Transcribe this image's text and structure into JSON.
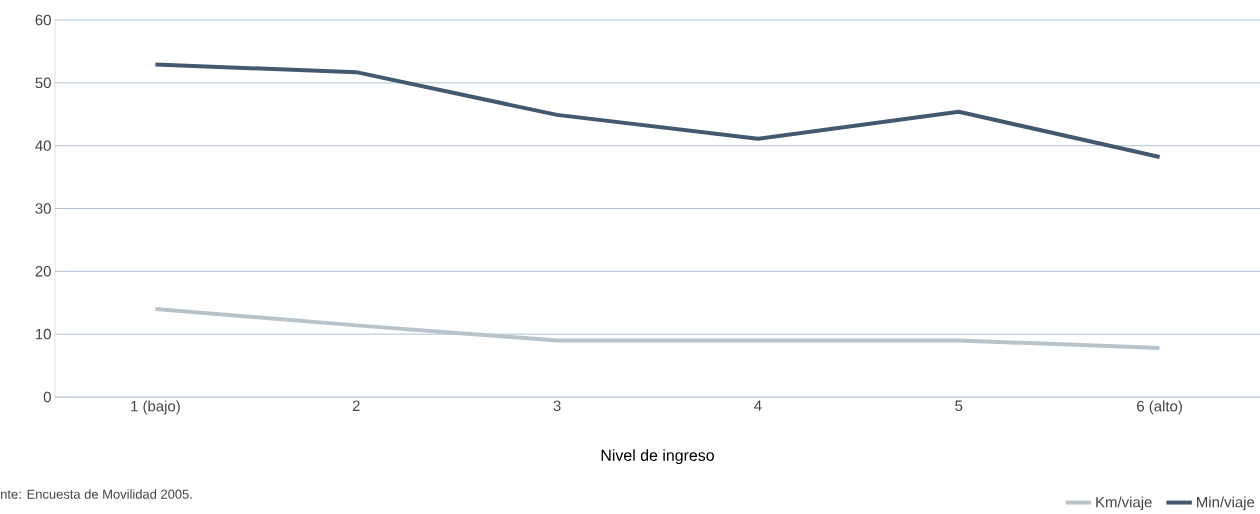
{
  "chart_data": {
    "type": "line",
    "xlabel": "Nivel de ingreso",
    "categories": [
      "1 (bajo)",
      "2",
      "3",
      "4",
      "5",
      "6 (alto)"
    ],
    "series": [
      {
        "name": "Km/viaje",
        "color": "#b8c3cc",
        "values": [
          14,
          11.4,
          9,
          9,
          9,
          7.8
        ]
      },
      {
        "name": "Min/viaje",
        "color": "#44596f",
        "values": [
          52.9,
          51.7,
          44.9,
          41.1,
          45.4,
          38.2
        ]
      }
    ],
    "ylim": [
      0,
      60
    ],
    "yticks": [
      0,
      10,
      20,
      30,
      40,
      50,
      60
    ],
    "grid": "y",
    "legend": "bottom right",
    "marker": "none",
    "line_style": "solid",
    "annotations": [
      "nte: Encuesta de Movilidad 2005."
    ]
  }
}
